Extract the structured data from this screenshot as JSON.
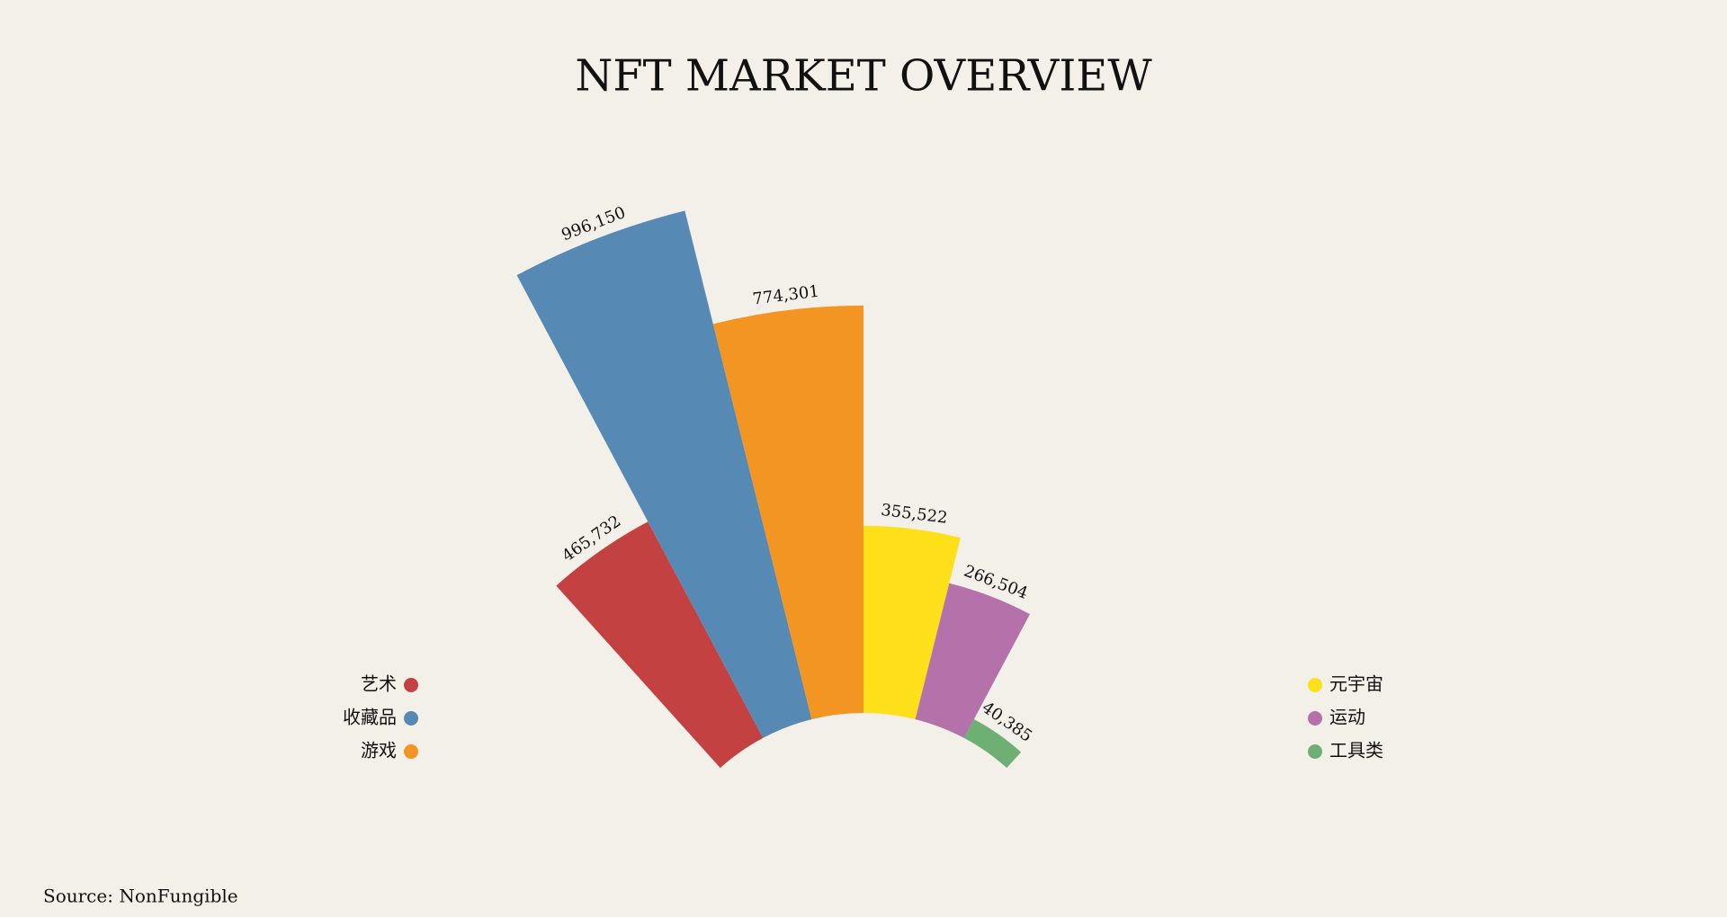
{
  "chart_data": {
    "type": "radial-bar",
    "title": "NFT MARKET OVERVIEW",
    "source": "Source: NonFungible",
    "categories": [
      "艺术",
      "收藏品",
      "游戏",
      "元宇宙",
      "运动",
      "工具类"
    ],
    "values": [
      465732,
      996150,
      774301,
      355522,
      266504,
      40385
    ],
    "value_labels": [
      "465,732",
      "996,150",
      "774,301",
      "355,522",
      "266,504",
      "40,385"
    ],
    "colors": [
      "#c44142",
      "#568ab4",
      "#f39522",
      "#fde01a",
      "#b471aa",
      "#6eb073"
    ]
  }
}
